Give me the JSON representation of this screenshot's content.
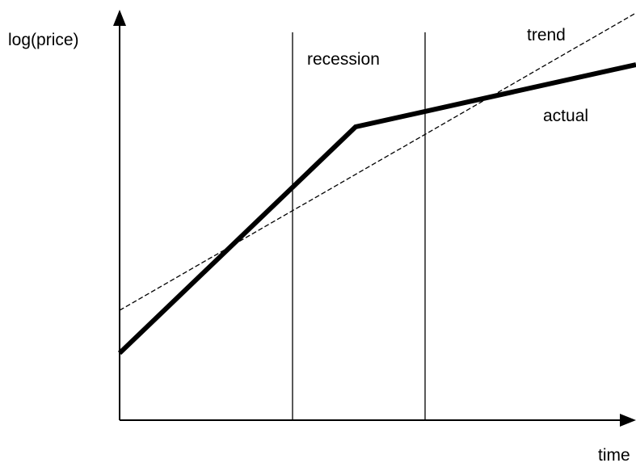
{
  "axes": {
    "y_label": "log(price)",
    "x_label": "time"
  },
  "labels": {
    "recession": "recession",
    "trend": "trend",
    "actual": "actual"
  }
}
